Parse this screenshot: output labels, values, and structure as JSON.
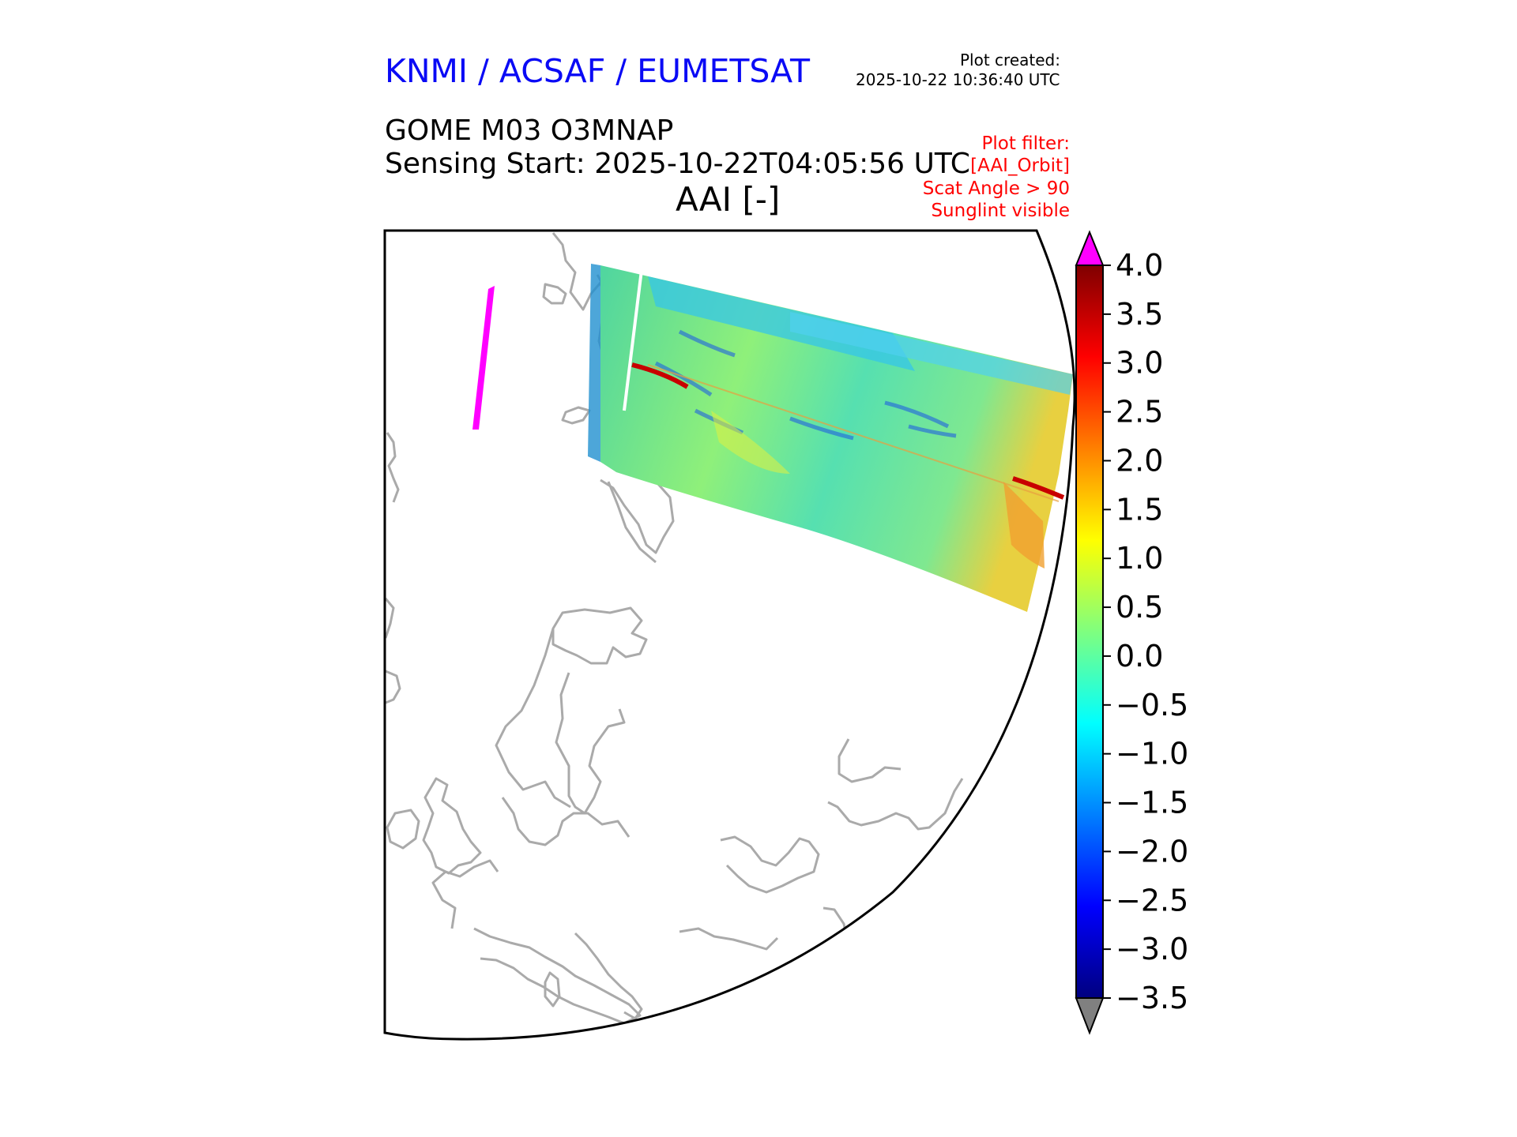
{
  "header": {
    "organization": "KNMI / ACSAF / EUMETSAT",
    "organization_color": "#0a0af5",
    "plot_created_label": "Plot created:",
    "plot_created_time": "2025-10-22 10:36:40 UTC",
    "product": "GOME M03 O3MNAP",
    "sensing_start": "Sensing Start: 2025-10-22T04:05:56 UTC",
    "variable_title": "AAI [-]"
  },
  "filter": {
    "color": "#ff0000",
    "lines": [
      "Plot filter:",
      "[AAI_Orbit]",
      "Scat Angle > 90",
      "Sunglint visible"
    ]
  },
  "map": {
    "coastline_color": "#aaaaaa",
    "boundary_color": "#000000",
    "region": "Europe / North Atlantic / Arctic"
  },
  "colorbar": {
    "ticks": [
      "4.0",
      "3.5",
      "3.0",
      "2.5",
      "2.0",
      "1.5",
      "1.0",
      "0.5",
      "0.0",
      "−0.5",
      "−1.0",
      "−1.5",
      "−2.0",
      "−2.5",
      "−3.0",
      "−3.5"
    ],
    "min": -3.5,
    "max": 4.0,
    "over_color": "#ff00ff",
    "under_color": "#808080",
    "colormap": "jet"
  }
}
